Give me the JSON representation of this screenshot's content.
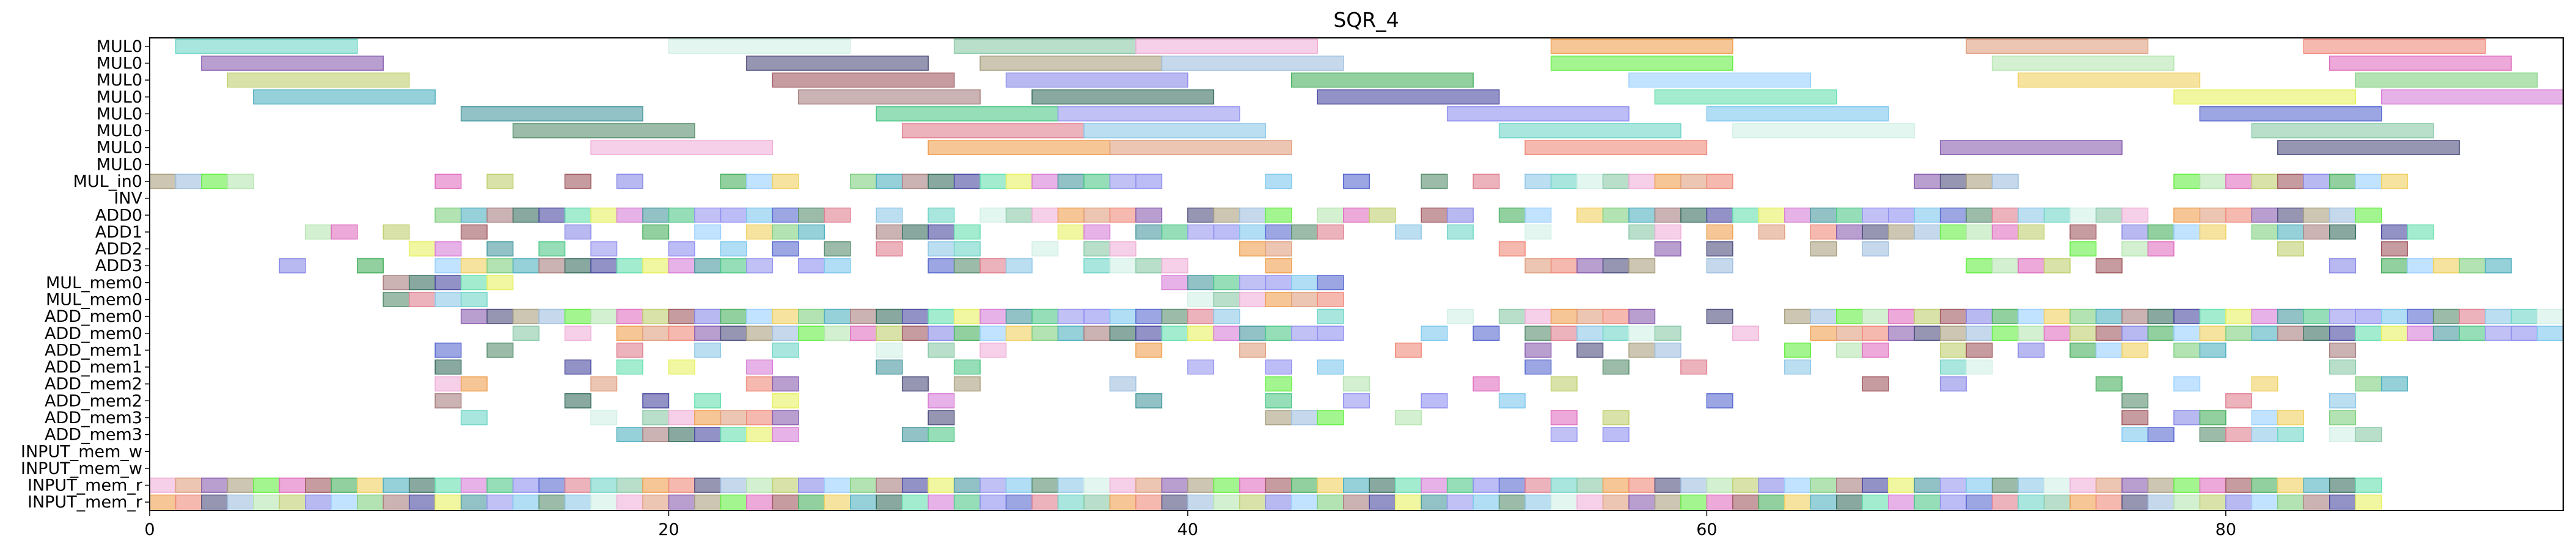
{
  "chart_data": {
    "type": "gantt",
    "title": "SQR_4",
    "xlabel": "",
    "ylabel": "",
    "xlim": [
      0,
      93
    ],
    "x_ticks": [
      0,
      20,
      40,
      60,
      80
    ],
    "grid": false,
    "legend": false,
    "rows": [
      "MUL0",
      "MUL0",
      "MUL0",
      "MUL0",
      "MUL0",
      "MUL0",
      "MUL0",
      "MUL0",
      "MUL_in0",
      "INV",
      "ADD0",
      "ADD1",
      "ADD2",
      "ADD3",
      "MUL_mem0",
      "MUL_mem0",
      "ADD_mem0",
      "ADD_mem0",
      "ADD_mem1",
      "ADD_mem1",
      "ADD_mem2",
      "ADD_mem2",
      "ADD_mem3",
      "ADD_mem3",
      "INPUT_mem_w",
      "INPUT_mem_w",
      "INPUT_mem_r",
      "INPUT_mem_r"
    ],
    "palette": [
      "#6fd6c8",
      "#8a8ae8",
      "#7fc8ee",
      "#66ee44",
      "#d77fd7",
      "#f08a7a",
      "#aa8080",
      "#d2f0e6",
      "#4ab060",
      "#5a6ad0",
      "#b5e6b0",
      "#4a9aa0",
      "#8a5fb0",
      "#3a7060",
      "#8acaa8",
      "#9ad0ff",
      "#5a9070",
      "#e070c0",
      "#50c888",
      "#505080",
      "#4a4aa0",
      "#f0b0d8",
      "#f0d060",
      "#e08090",
      "#c0d070",
      "#9898f0",
      "#aaa080",
      "#66e0b0",
      "#f0a050",
      "#80d080",
      "#90c8e8",
      "#a05a60",
      "#9090f0",
      "#a0c0e0",
      "#e8f060",
      "#e0a080",
      "#50b0c0"
    ],
    "mul0_spans": [
      [
        [
          1,
          8
        ],
        [
          20,
          27
        ],
        [
          31,
          38
        ],
        [
          38,
          45
        ],
        [
          54,
          61
        ],
        [
          70,
          77
        ],
        [
          83,
          90
        ]
      ],
      [
        [
          2,
          9
        ],
        [
          23,
          30
        ],
        [
          32,
          39
        ],
        [
          39,
          46
        ],
        [
          54,
          61
        ],
        [
          71,
          78
        ],
        [
          84,
          91
        ]
      ],
      [
        [
          3,
          10
        ],
        [
          24,
          31
        ],
        [
          33,
          40
        ],
        [
          44,
          51
        ],
        [
          57,
          64
        ],
        [
          72,
          79
        ],
        [
          85,
          92
        ]
      ],
      [
        [
          4,
          11
        ],
        [
          25,
          32
        ],
        [
          34,
          41
        ],
        [
          45,
          52
        ],
        [
          58,
          65
        ],
        [
          78,
          85
        ],
        [
          86,
          93
        ]
      ],
      [
        [
          12,
          19
        ],
        [
          28,
          35
        ],
        [
          35,
          42
        ],
        [
          50,
          57
        ],
        [
          60,
          67
        ],
        [
          79,
          86
        ]
      ],
      [
        [
          14,
          21
        ],
        [
          29,
          36
        ],
        [
          36,
          43
        ],
        [
          52,
          59
        ],
        [
          61,
          68
        ],
        [
          81,
          88
        ]
      ],
      [
        [
          17,
          24
        ],
        [
          30,
          37
        ],
        [
          37,
          44
        ],
        [
          53,
          60
        ],
        [
          69,
          76
        ],
        [
          82,
          89
        ]
      ]
    ],
    "mul_in0_cells": [
      0,
      1,
      2,
      3,
      11,
      13,
      16,
      18,
      22,
      23,
      24,
      27,
      28,
      29,
      30,
      31,
      32,
      33,
      34,
      35,
      36,
      37,
      38,
      43,
      46,
      49,
      51,
      53,
      54,
      55,
      56,
      57,
      58,
      59,
      60,
      68,
      69,
      70,
      71,
      78,
      79,
      80,
      81,
      82,
      83,
      84,
      85,
      86
    ],
    "adds": {
      "ADD0": [
        11,
        12,
        13,
        14,
        15,
        16,
        17,
        18,
        19,
        20,
        21,
        22,
        23,
        24,
        25,
        26,
        28,
        30,
        32,
        33,
        34,
        35,
        36,
        37,
        38,
        40,
        41,
        42,
        43,
        45,
        46,
        47,
        49,
        50,
        52,
        53,
        55,
        56,
        57,
        58,
        59,
        60,
        61,
        62,
        63,
        64,
        65,
        66,
        67,
        68,
        69,
        70,
        71,
        72,
        73,
        74,
        75,
        76,
        78,
        79,
        80,
        81,
        82,
        83,
        84,
        85
      ],
      "ADD1": [
        6,
        7,
        9,
        12,
        16,
        19,
        21,
        23,
        24,
        25,
        28,
        29,
        30,
        31,
        35,
        36,
        38,
        39,
        40,
        41,
        42,
        43,
        44,
        45,
        48,
        50,
        53,
        57,
        58,
        60,
        62,
        64,
        65,
        66,
        67,
        68,
        69,
        70,
        71,
        72,
        74,
        76,
        77,
        78,
        79,
        81,
        82,
        83,
        84,
        86,
        87
      ],
      "ADD2": [
        10,
        11,
        13,
        15,
        17,
        20,
        22,
        24,
        26,
        28,
        30,
        31,
        34,
        36,
        37,
        42,
        43,
        52,
        58,
        60,
        64,
        66,
        74,
        76,
        77,
        82,
        86
      ],
      "ADD3": [
        5,
        8,
        11,
        12,
        13,
        14,
        15,
        16,
        17,
        18,
        19,
        20,
        21,
        22,
        23,
        25,
        26,
        30,
        31,
        32,
        33,
        36,
        37,
        38,
        39,
        43,
        53,
        54,
        55,
        56,
        57,
        60,
        70,
        71,
        72,
        73,
        75,
        84,
        86,
        87,
        88,
        89,
        90
      ],
      "MUL_mem0_a": [
        9,
        10,
        11,
        12,
        13,
        39,
        40,
        41,
        42,
        43,
        44,
        45
      ],
      "MUL_mem0_b": [
        9,
        10,
        11,
        12,
        40,
        41,
        42,
        43,
        44,
        45
      ]
    },
    "mem_rows": {
      "ADD_mem0_a": [
        12,
        13,
        14,
        15,
        16,
        17,
        18,
        19,
        20,
        21,
        22,
        23,
        24,
        25,
        26,
        27,
        28,
        29,
        30,
        31,
        32,
        33,
        34,
        35,
        36,
        37,
        38,
        39,
        40,
        41,
        45,
        50,
        52,
        53,
        54,
        55,
        56,
        57,
        60,
        63,
        64,
        65,
        66,
        67,
        68,
        69,
        70,
        71,
        72,
        73,
        74,
        75,
        76,
        77,
        78,
        79,
        80,
        81,
        82,
        83,
        84,
        85,
        86,
        87,
        88,
        89,
        90,
        91,
        92
      ],
      "ADD_mem0_b": [
        14,
        16,
        18,
        19,
        20,
        21,
        22,
        23,
        24,
        25,
        26,
        27,
        28,
        29,
        30,
        31,
        32,
        33,
        34,
        35,
        36,
        37,
        38,
        39,
        40,
        41,
        42,
        43,
        44,
        45,
        49,
        51,
        53,
        54,
        55,
        56,
        57,
        58,
        61,
        64,
        65,
        66,
        67,
        68,
        69,
        70,
        71,
        72,
        73,
        74,
        75,
        76,
        77,
        78,
        79,
        80,
        81,
        82,
        83,
        84,
        85,
        86,
        87,
        88,
        89,
        90,
        91,
        92
      ],
      "ADD_mem1_a": [
        11,
        13,
        18,
        21,
        24,
        28,
        30,
        32,
        38,
        42,
        48,
        53,
        55,
        57,
        58,
        63,
        65,
        66,
        69,
        70,
        72,
        74,
        75,
        76,
        78,
        79,
        84
      ],
      "ADD_mem1_b": [
        11,
        16,
        18,
        20,
        23,
        28,
        31,
        40,
        43,
        45,
        53,
        56,
        59,
        63,
        69,
        70,
        84
      ],
      "ADD_mem2_a": [
        11,
        12,
        17,
        23,
        24,
        29,
        31,
        37,
        43,
        46,
        51,
        54,
        66,
        69,
        75,
        78,
        81,
        85,
        86
      ],
      "ADD_mem2_b": [
        11,
        16,
        19,
        21,
        24,
        30,
        38,
        43,
        46,
        49,
        52,
        60,
        76,
        80,
        84
      ],
      "ADD_mem3_a": [
        12,
        17,
        19,
        20,
        21,
        22,
        23,
        24,
        30,
        43,
        44,
        45,
        48,
        54,
        56,
        76,
        78,
        79,
        81,
        82,
        84
      ],
      "ADD_mem3_b": [
        18,
        19,
        20,
        21,
        22,
        23,
        24,
        29,
        30,
        54,
        56,
        76,
        77,
        79,
        80,
        81,
        82,
        84,
        85
      ]
    },
    "input_cells": 86
  }
}
